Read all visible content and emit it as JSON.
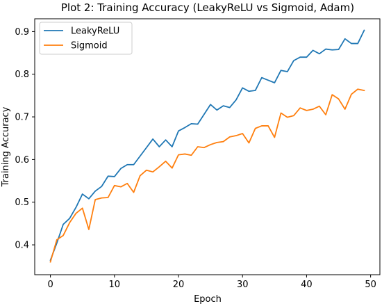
{
  "chart_data": {
    "type": "line",
    "title": "Plot 2: Training Accuracy (LeakyReLU vs Sigmoid, Adam)",
    "xlabel": "Epoch",
    "ylabel": "Training Accuracy",
    "xlim": [
      -2.45,
      51.45
    ],
    "ylim": [
      0.33,
      0.93
    ],
    "xticks": [
      0,
      10,
      20,
      30,
      40,
      50
    ],
    "yticks": [
      0.4,
      0.5,
      0.6,
      0.7,
      0.8,
      0.9
    ],
    "grid": false,
    "legend_position": "top-left",
    "x": [
      0,
      1,
      2,
      3,
      4,
      5,
      6,
      7,
      8,
      9,
      10,
      11,
      12,
      13,
      14,
      15,
      16,
      17,
      18,
      19,
      20,
      21,
      22,
      23,
      24,
      25,
      26,
      27,
      28,
      29,
      30,
      31,
      32,
      33,
      34,
      35,
      36,
      37,
      38,
      39,
      40,
      41,
      42,
      43,
      44,
      45,
      46,
      47,
      48,
      49
    ],
    "series": [
      {
        "name": "LeakyReLU",
        "color": "#1f77b4",
        "values": [
          0.364,
          0.404,
          0.448,
          0.462,
          0.488,
          0.519,
          0.508,
          0.526,
          0.537,
          0.561,
          0.56,
          0.579,
          0.588,
          0.588,
          0.608,
          0.628,
          0.648,
          0.63,
          0.646,
          0.63,
          0.667,
          0.675,
          0.684,
          0.683,
          0.706,
          0.729,
          0.716,
          0.726,
          0.722,
          0.74,
          0.768,
          0.76,
          0.762,
          0.792,
          0.786,
          0.78,
          0.809,
          0.806,
          0.832,
          0.84,
          0.84,
          0.856,
          0.848,
          0.859,
          0.857,
          0.858,
          0.883,
          0.872,
          0.872,
          0.903
        ]
      },
      {
        "name": "Sigmoid",
        "color": "#ff7f0e",
        "values": [
          0.36,
          0.412,
          0.422,
          0.452,
          0.474,
          0.486,
          0.436,
          0.506,
          0.51,
          0.511,
          0.539,
          0.536,
          0.544,
          0.523,
          0.562,
          0.575,
          0.571,
          0.583,
          0.596,
          0.58,
          0.611,
          0.613,
          0.61,
          0.63,
          0.628,
          0.635,
          0.64,
          0.642,
          0.653,
          0.656,
          0.661,
          0.639,
          0.673,
          0.679,
          0.679,
          0.652,
          0.709,
          0.699,
          0.703,
          0.721,
          0.715,
          0.718,
          0.725,
          0.705,
          0.752,
          0.742,
          0.718,
          0.753,
          0.765,
          0.762
        ]
      }
    ]
  }
}
